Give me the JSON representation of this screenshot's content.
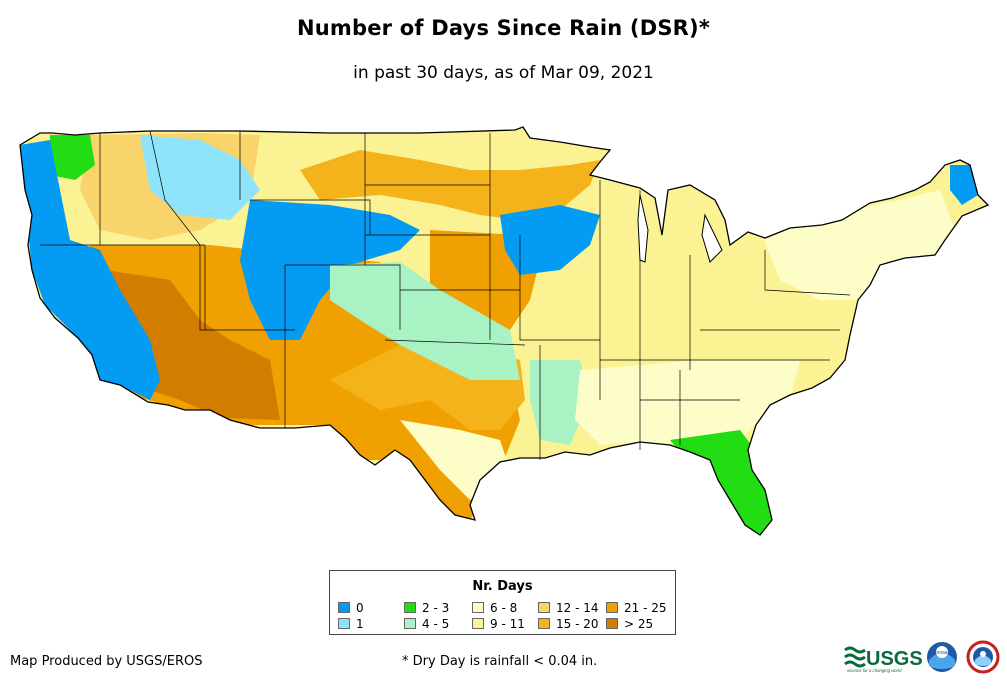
{
  "title": "Number of Days Since Rain (DSR)*",
  "subtitle": "in past 30 days, as of Mar 09, 2021",
  "legend": {
    "title": "Nr. Days",
    "items": [
      {
        "label": "0",
        "color": "#049bf2"
      },
      {
        "label": "1",
        "color": "#8fe3fb"
      },
      {
        "label": "2 - 3",
        "color": "#22dd14"
      },
      {
        "label": "4 - 5",
        "color": "#a9f2c4"
      },
      {
        "label": "6 - 8",
        "color": "#fdfdc8"
      },
      {
        "label": "9 - 11",
        "color": "#fbf293"
      },
      {
        "label": "12 - 14",
        "color": "#f8d46a"
      },
      {
        "label": "15 - 20",
        "color": "#f5b31b"
      },
      {
        "label": "21 - 25",
        "color": "#f0a000"
      },
      {
        "label": "> 25",
        "color": "#d27d00"
      }
    ]
  },
  "credit": "Map Produced by USGS/EROS",
  "footnote": "* Dry Day is rainfall < 0.04 in.",
  "logos": {
    "usgs": "USGS",
    "usgs_tagline": "science for a changing world",
    "noaa": "noaa"
  }
}
